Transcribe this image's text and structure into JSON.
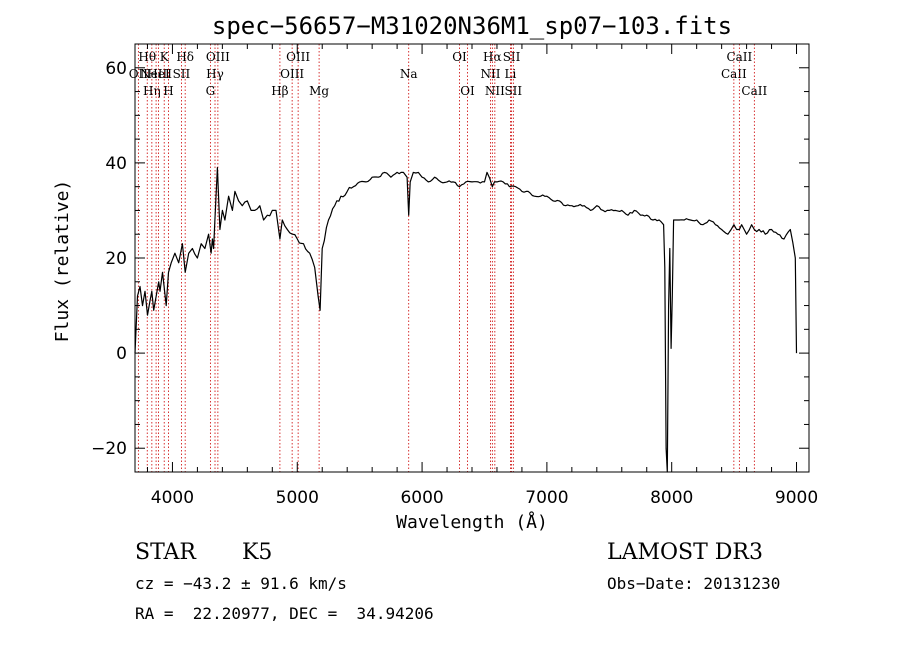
{
  "chart_data": {
    "type": "line",
    "title": "spec−56657−M31020N36M1_sp07−103.fits",
    "xlabel": "Wavelength (Å)",
    "ylabel": "Flux (relative)",
    "xlim": [
      3700,
      9100
    ],
    "ylim": [
      -25,
      65
    ],
    "xticks": [
      4000,
      5000,
      6000,
      7000,
      8000,
      9000
    ],
    "yticks": [
      -20,
      0,
      20,
      40,
      60
    ],
    "ytick_labels": [
      "−20",
      "0",
      "20",
      "40",
      "60"
    ],
    "series": [
      {
        "name": "flux",
        "x": [
          3700,
          3720,
          3740,
          3760,
          3780,
          3800,
          3820,
          3835,
          3850,
          3870,
          3890,
          3900,
          3920,
          3933,
          3950,
          3968,
          3990,
          4020,
          4050,
          4080,
          4102,
          4130,
          4160,
          4200,
          4230,
          4260,
          4290,
          4310,
          4320,
          4330,
          4340,
          4360,
          4380,
          4400,
          4420,
          4450,
          4480,
          4500,
          4530,
          4560,
          4600,
          4630,
          4660,
          4700,
          4730,
          4760,
          4800,
          4830,
          4861,
          4880,
          4920,
          4960,
          5000,
          5050,
          5100,
          5140,
          5167,
          5183,
          5200,
          5250,
          5300,
          5350,
          5400,
          5450,
          5500,
          5550,
          5600,
          5650,
          5700,
          5750,
          5800,
          5850,
          5880,
          5893,
          5905,
          5930,
          5970,
          6000,
          6050,
          6100,
          6150,
          6200,
          6250,
          6300,
          6350,
          6400,
          6450,
          6500,
          6520,
          6563,
          6580,
          6600,
          6650,
          6700,
          6750,
          6800,
          6850,
          6900,
          6950,
          7000,
          7050,
          7100,
          7150,
          7200,
          7250,
          7300,
          7350,
          7400,
          7450,
          7500,
          7550,
          7600,
          7650,
          7700,
          7750,
          7800,
          7850,
          7900,
          7935,
          7945,
          7955,
          7965,
          7975,
          7985,
          7995,
          8005,
          8015,
          8030,
          8060,
          8100,
          8150,
          8200,
          8250,
          8300,
          8350,
          8400,
          8450,
          8498,
          8520,
          8542,
          8560,
          8600,
          8640,
          8662,
          8700,
          8750,
          8800,
          8850,
          8900,
          8950,
          8990,
          9000
        ],
        "y": [
          0,
          12,
          14,
          10,
          13,
          8,
          11,
          13,
          9,
          12,
          15,
          13,
          17,
          14,
          10,
          17,
          19,
          21,
          19,
          23,
          17,
          21,
          22,
          20,
          23,
          22,
          25,
          21,
          24,
          22,
          28,
          39,
          26,
          30,
          28,
          33,
          30,
          34,
          32,
          31,
          32,
          30,
          30,
          31,
          28,
          29,
          30,
          30,
          24,
          28,
          26,
          25,
          24,
          23,
          21,
          18,
          12,
          9,
          22,
          28,
          31,
          33,
          34,
          35,
          36,
          36,
          37,
          37,
          38,
          37,
          38,
          38,
          37,
          29,
          36,
          38,
          38,
          37,
          36,
          37,
          36,
          36,
          36,
          35,
          36,
          36,
          36,
          36,
          38,
          35,
          36,
          36,
          36,
          35,
          35,
          34,
          34,
          33,
          33,
          33,
          32,
          32,
          31,
          31,
          31,
          31,
          30,
          31,
          30,
          30,
          30,
          30,
          29,
          30,
          29,
          29,
          28,
          28,
          27,
          18,
          -20,
          -25,
          10,
          22,
          1,
          12,
          28,
          28,
          28,
          28,
          28,
          28,
          27,
          28,
          27,
          26,
          25,
          27,
          26,
          26,
          27,
          25,
          27,
          26,
          26,
          25,
          26,
          25,
          24,
          26,
          20,
          0
        ]
      }
    ],
    "spectral_lines": [
      {
        "wavelength": 3727,
        "label": "OII",
        "row": 2
      },
      {
        "wavelength": 3798,
        "label": "Hθ",
        "row": 1
      },
      {
        "wavelength": 3835,
        "label": "Hη",
        "row": 3
      },
      {
        "wavelength": 3869,
        "label": "NeIII",
        "row": 2
      },
      {
        "wavelength": 3889,
        "label": "HeI",
        "row": 2
      },
      {
        "wavelength": 3934,
        "label": "K",
        "row": 1
      },
      {
        "wavelength": 3968,
        "label": "H",
        "row": 3
      },
      {
        "wavelength": 4072,
        "label": "SII",
        "row": 2
      },
      {
        "wavelength": 4102,
        "label": "Hδ",
        "row": 1
      },
      {
        "wavelength": 4304,
        "label": "G",
        "row": 3
      },
      {
        "wavelength": 4341,
        "label": "Hγ",
        "row": 2
      },
      {
        "wavelength": 4364,
        "label": "OIII",
        "row": 1
      },
      {
        "wavelength": 4861,
        "label": "Hβ",
        "row": 3
      },
      {
        "wavelength": 4959,
        "label": "OIII",
        "row": 2
      },
      {
        "wavelength": 5007,
        "label": "OIII",
        "row": 1
      },
      {
        "wavelength": 5175,
        "label": "Mg",
        "row": 3
      },
      {
        "wavelength": 5893,
        "label": "Na",
        "row": 2
      },
      {
        "wavelength": 6300,
        "label": "OI",
        "row": 1
      },
      {
        "wavelength": 6364,
        "label": "OI",
        "row": 3
      },
      {
        "wavelength": 6548,
        "label": "NII",
        "row": 2
      },
      {
        "wavelength": 6563,
        "label": "Hα",
        "row": 1
      },
      {
        "wavelength": 6583,
        "label": "NII",
        "row": 3
      },
      {
        "wavelength": 6708,
        "label": "Li",
        "row": 2
      },
      {
        "wavelength": 6717,
        "label": "SII",
        "row": 1
      },
      {
        "wavelength": 6731,
        "label": "SII",
        "row": 3
      },
      {
        "wavelength": 8498,
        "label": "CaII",
        "row": 2
      },
      {
        "wavelength": 8542,
        "label": "CaII",
        "row": 1
      },
      {
        "wavelength": 8662,
        "label": "CaII",
        "row": 3
      }
    ],
    "colors": {
      "spectrum": "#000000",
      "lines": "#cc0000",
      "axes": "#000000"
    }
  },
  "info": {
    "class": "STAR",
    "subclass": "K5",
    "survey": "LAMOST DR3",
    "redshift": "cz = −43.2 ± 91.6 km/s",
    "obs_date": "Obs−Date: 20131230",
    "coords": "RA =  22.20977, DEC =  34.94206"
  }
}
